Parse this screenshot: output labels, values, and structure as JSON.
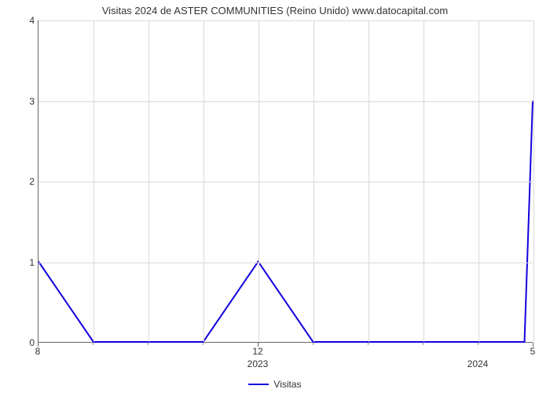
{
  "chart": {
    "type": "line",
    "title": "Visitas 2024 de ASTER COMMUNITIES (Reino Unido) www.datocapital.com",
    "title_fontsize": 13,
    "title_color": "#333333",
    "background_color": "#ffffff",
    "plot_background_color": "#ffffff",
    "line_color": "#1300de",
    "line_width": 2,
    "grid_color": "#d9d9d9",
    "axis_color": "#666666",
    "tick_label_color": "#333333",
    "tick_fontsize": 12,
    "ylim": [
      0,
      4
    ],
    "yticks": [
      0,
      1,
      2,
      3,
      4
    ],
    "x_domain_months": [
      0,
      9
    ],
    "x_major_ticks": [
      {
        "month_index": 0,
        "label": "8"
      },
      {
        "month_index": 4,
        "label": "12"
      },
      {
        "month_index": 9,
        "label": "5"
      }
    ],
    "x_year_labels": [
      {
        "month_index": 4,
        "label": "2023"
      },
      {
        "month_index": 8,
        "label": "2024"
      }
    ],
    "x_minor_tick_months": [
      1,
      2,
      3,
      5,
      6,
      7,
      8
    ],
    "series": {
      "label": "Visitas",
      "x_months": [
        0,
        1,
        2,
        3,
        4,
        5,
        6,
        7,
        8,
        8.85,
        9
      ],
      "y_values": [
        1,
        0,
        0,
        0,
        1,
        0,
        0,
        0,
        0,
        0,
        3
      ]
    },
    "legend": {
      "position": "bottom-center",
      "swatch_color": "#1300de",
      "label": "Visitas"
    }
  }
}
